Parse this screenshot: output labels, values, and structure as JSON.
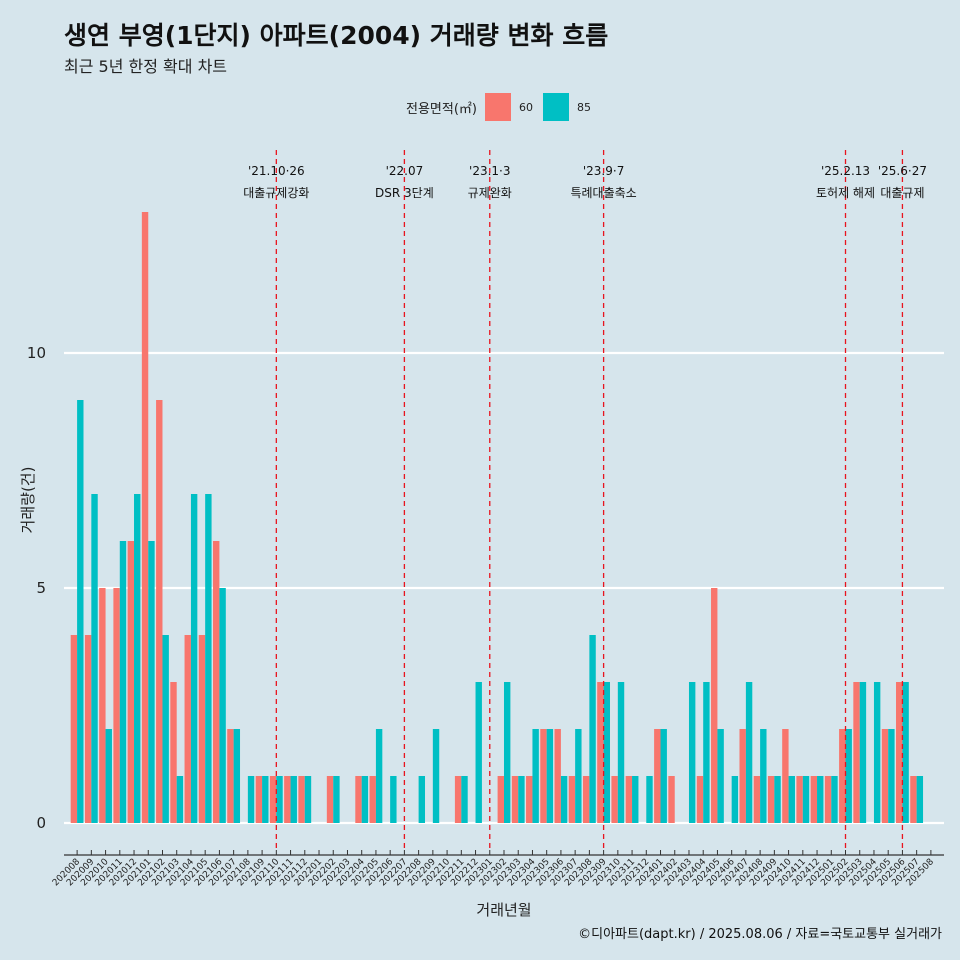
{
  "chart_data": {
    "type": "bar",
    "title": "생연 부영(1단지) 아파트(2004) 거래량 변화 흐름",
    "subtitle": "최근 5년 한정 확대 차트",
    "xlabel": "거래년월",
    "ylabel": "거래량(건)",
    "ylim": [
      0,
      13
    ],
    "yticks": [
      0,
      5,
      10
    ],
    "legend": {
      "title": "전용면적(㎡)",
      "position": "top"
    },
    "categories": [
      "202008",
      "202009",
      "202010",
      "202011",
      "202012",
      "202101",
      "202102",
      "202103",
      "202104",
      "202105",
      "202106",
      "202107",
      "202108",
      "202109",
      "202110",
      "202111",
      "202112",
      "202201",
      "202202",
      "202203",
      "202204",
      "202205",
      "202206",
      "202207",
      "202208",
      "202209",
      "202210",
      "202211",
      "202212",
      "202301",
      "202302",
      "202303",
      "202304",
      "202305",
      "202306",
      "202307",
      "202308",
      "202309",
      "202310",
      "202311",
      "202312",
      "202401",
      "202402",
      "202403",
      "202404",
      "202405",
      "202406",
      "202407",
      "202408",
      "202409",
      "202410",
      "202411",
      "202412",
      "202501",
      "202502",
      "202503",
      "202504",
      "202505",
      "202506",
      "202507",
      "202508"
    ],
    "series": [
      {
        "name": "60",
        "color": "#f8766d",
        "values": [
          4,
          4,
          5,
          5,
          6,
          13,
          9,
          3,
          4,
          4,
          6,
          2,
          0,
          1,
          1,
          1,
          1,
          0,
          1,
          0,
          1,
          1,
          0,
          0,
          0,
          0,
          0,
          1,
          0,
          0,
          1,
          1,
          1,
          2,
          2,
          1,
          1,
          3,
          1,
          1,
          0,
          2,
          1,
          0,
          1,
          5,
          0,
          2,
          1,
          1,
          2,
          1,
          1,
          1,
          2,
          3,
          0,
          2,
          3,
          1,
          0
        ]
      },
      {
        "name": "85",
        "color": "#00bfc4",
        "values": [
          9,
          7,
          2,
          6,
          7,
          6,
          4,
          1,
          7,
          7,
          5,
          2,
          1,
          1,
          1,
          1,
          1,
          0,
          1,
          0,
          1,
          2,
          1,
          0,
          1,
          2,
          0,
          1,
          3,
          0,
          3,
          1,
          2,
          2,
          1,
          2,
          4,
          3,
          3,
          1,
          1,
          2,
          0,
          3,
          3,
          2,
          1,
          3,
          2,
          1,
          1,
          1,
          1,
          1,
          2,
          3,
          3,
          2,
          3,
          1,
          0
        ]
      }
    ],
    "annotations": [
      {
        "x": "202110",
        "date": "'21.10·26",
        "label": "대출규제강화"
      },
      {
        "x": "202207",
        "date": "'22.07",
        "label": "DSR 3단계"
      },
      {
        "x": "202301",
        "date": "'23.1·3",
        "label": "규제완화"
      },
      {
        "x": "202309",
        "date": "'23.9·7",
        "label": "특례대출축소"
      },
      {
        "x": "202502",
        "date": "'25.2.13",
        "label": "토허제 해제"
      },
      {
        "x": "202506",
        "date": "'25.6·27",
        "label": "대출규제"
      }
    ]
  },
  "footer": "©디아파트(dapt.kr) / 2025.08.06 / 자료=국토교통부 실거래가"
}
